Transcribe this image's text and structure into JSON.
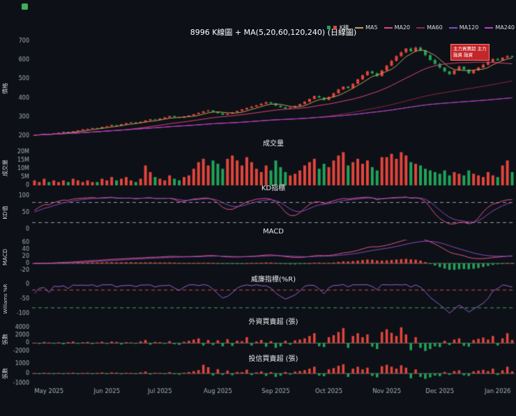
{
  "header": {
    "title": "8996 K線圖 + MA(5,20,60,120,240) (日線圖)"
  },
  "logo": {
    "color": "#3fae58"
  },
  "legend": {
    "items": [
      {
        "label": "K線",
        "colors": [
          "#21a35a",
          "#e2453c"
        ]
      },
      {
        "label": "MA5",
        "color": "#c9a05f"
      },
      {
        "label": "MA20",
        "color": "#e0457b"
      },
      {
        "label": "MA60",
        "color": "#8f2742"
      },
      {
        "label": "MA120",
        "color": "#7d4fc9"
      },
      {
        "label": "MA240",
        "color": "#c23ac2"
      }
    ]
  },
  "annotation": {
    "lines": [
      "主力買賣超 主力",
      "融資 融資"
    ],
    "bg": "#c3272b",
    "fg": "#ffffff"
  },
  "panels": {
    "price": {
      "ylabel": "價格",
      "tick_values": [
        200,
        300,
        400,
        500,
        600,
        700
      ],
      "tick_labels": [
        "200",
        "300",
        "400",
        "500",
        "600",
        "700"
      ]
    },
    "volume": {
      "title": "成交量",
      "ylabel": "成交量",
      "tick_values": [
        0,
        5,
        10,
        15,
        20
      ],
      "tick_labels": [
        "0",
        "5M",
        "10M",
        "15M",
        "20M"
      ]
    },
    "kd": {
      "title": "KD指標",
      "ylabel": "KD值",
      "tick_values": [
        0,
        50,
        100
      ],
      "tick_labels": [
        "0",
        "50",
        "100"
      ],
      "upper": 80,
      "lower": 20
    },
    "macd": {
      "title": "MACD",
      "ylabel": "MACD",
      "tick_values": [
        -20,
        0,
        20,
        40,
        60
      ],
      "tick_labels": [
        "-20",
        "0",
        "20",
        "40",
        "60"
      ]
    },
    "wr": {
      "title": "威廉指標(%R)",
      "ylabel": "Williams %R",
      "tick_values": [
        0,
        -50,
        -100
      ],
      "tick_labels": [
        "0",
        "-50",
        "-100"
      ],
      "upper": -20,
      "lower": -80
    },
    "foreign": {
      "title": "外資買賣超 (張)",
      "ylabel": "張數",
      "tick_values": [
        -2000,
        0,
        2000,
        4000
      ],
      "tick_labels": [
        "-2000",
        "0",
        "2000",
        "4000"
      ]
    },
    "trust": {
      "title": "投信買賣超 (張)",
      "ylabel": "張數",
      "tick_values": [
        -1000,
        0,
        1000
      ],
      "tick_labels": [
        "-1000",
        "0",
        "1000"
      ]
    }
  },
  "xaxis": {
    "labels": [
      "May 2025",
      "Jun 2025",
      "Jul 2025",
      "Aug 2025",
      "Sep 2025",
      "Oct 2025",
      "Nov 2025",
      "Dec 2025",
      "Jan 2026"
    ],
    "tick_indices": [
      3,
      15,
      26,
      38,
      50,
      61,
      73,
      84,
      96
    ]
  },
  "chart_data": {
    "type": "candlestick-multi-panel",
    "symbol": "8996",
    "interval": "daily",
    "ma_periods": [
      5,
      20,
      60,
      120,
      240
    ],
    "price_range": [
      200,
      700
    ],
    "closes": [
      205,
      208,
      212,
      210,
      215,
      218,
      222,
      220,
      225,
      230,
      235,
      238,
      242,
      240,
      248,
      252,
      258,
      255,
      262,
      268,
      272,
      270,
      275,
      282,
      288,
      285,
      292,
      298,
      305,
      300,
      296,
      302,
      308,
      315,
      322,
      330,
      335,
      328,
      320,
      312,
      318,
      325,
      332,
      340,
      348,
      355,
      362,
      370,
      378,
      372,
      360,
      352,
      345,
      350,
      358,
      368,
      380,
      395,
      410,
      402,
      390,
      405,
      425,
      445,
      460,
      452,
      475,
      498,
      520,
      540,
      530,
      515,
      545,
      570,
      595,
      620,
      640,
      660,
      645,
      665,
      650,
      625,
      600,
      580,
      560,
      540,
      525,
      545,
      565,
      550,
      530,
      545,
      560,
      575,
      590,
      605,
      598,
      612,
      620,
      615
    ],
    "volumes_m": [
      3,
      2,
      4,
      2,
      3,
      2,
      3,
      2,
      4,
      3,
      2,
      3,
      2,
      2,
      4,
      3,
      5,
      3,
      4,
      5,
      3,
      2,
      4,
      12,
      8,
      5,
      4,
      3,
      6,
      4,
      3,
      5,
      6,
      10,
      14,
      16,
      12,
      15,
      13,
      10,
      16,
      18,
      15,
      12,
      17,
      14,
      10,
      8,
      12,
      9,
      15,
      11,
      8,
      6,
      7,
      9,
      12,
      14,
      16,
      10,
      13,
      11,
      15,
      18,
      20,
      12,
      14,
      16,
      13,
      15,
      11,
      9,
      17,
      17,
      19,
      16,
      20,
      18,
      14,
      13,
      12,
      10,
      9,
      8,
      7,
      9,
      6,
      8,
      7,
      6,
      9,
      7,
      6,
      5,
      8,
      6,
      5,
      12,
      15,
      8
    ],
    "foreign_net": [
      100,
      -200,
      300,
      150,
      -100,
      200,
      -300,
      250,
      400,
      -150,
      200,
      300,
      -250,
      150,
      350,
      -200,
      400,
      300,
      -350,
      250,
      150,
      -100,
      450,
      800,
      -400,
      300,
      250,
      -200,
      500,
      -300,
      -450,
      350,
      600,
      900,
      1200,
      -600,
      800,
      -500,
      700,
      -800,
      1000,
      -700,
      600,
      500,
      1500,
      -600,
      400,
      800,
      -900,
      500,
      -1200,
      -800,
      600,
      -400,
      700,
      900,
      1200,
      1800,
      2500,
      -800,
      -1000,
      1500,
      2000,
      2800,
      3800,
      -1200,
      1800,
      2500,
      1500,
      2200,
      -900,
      -1500,
      2800,
      3500,
      2600,
      1800,
      4000,
      2200,
      -1800,
      1500,
      -1200,
      -2000,
      -1500,
      -800,
      -1000,
      600,
      -500,
      900,
      1200,
      -700,
      -900,
      800,
      1100,
      1400,
      900,
      1800,
      -600,
      1200,
      2500,
      800
    ],
    "trust_net": [
      50,
      -30,
      80,
      40,
      -60,
      70,
      -40,
      60,
      90,
      -50,
      60,
      80,
      -70,
      50,
      100,
      -60,
      110,
      90,
      -80,
      70,
      40,
      -30,
      120,
      200,
      -100,
      80,
      70,
      -60,
      140,
      -80,
      -120,
      90,
      160,
      250,
      350,
      900,
      650,
      -200,
      450,
      -150,
      300,
      -180,
      160,
      140,
      400,
      -160,
      120,
      220,
      -250,
      140,
      -350,
      -220,
      160,
      -120,
      200,
      250,
      350,
      500,
      700,
      -220,
      -280,
      420,
      560,
      800,
      950,
      -350,
      500,
      700,
      420,
      600,
      -250,
      -400,
      750,
      900,
      700,
      500,
      850,
      600,
      -500,
      420,
      -350,
      -550,
      -400,
      -220,
      -280,
      160,
      -140,
      250,
      330,
      -190,
      -250,
      220,
      300,
      380,
      250,
      500,
      -160,
      330,
      700,
      220
    ],
    "colors": {
      "up": "#e2453c",
      "down": "#21a35a",
      "ma5": "#c9a05f",
      "ma20": "#e0457b",
      "ma60": "#8f2742",
      "ma120": "#7d4fc9",
      "ma240": "#c23ac2",
      "k_line": "#e8538a",
      "d_line": "#8d4bbf",
      "dif": "#e8538a",
      "dea": "#8d4bbf",
      "wr": "#a05fd0",
      "axis_text": "#a8adb5",
      "dashed": "#9aa0a6",
      "wr_upper": "#cf4f4f",
      "wr_lower": "#3aa864",
      "zero": "#666666"
    }
  }
}
